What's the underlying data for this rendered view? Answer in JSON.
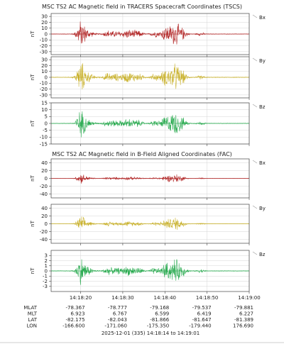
{
  "colors": {
    "bx": "#b02020",
    "by": "#c8b028",
    "bz": "#22a84a"
  },
  "chart_data": {
    "type": "line",
    "x_range": [
      "14:18:13",
      "14:19:00"
    ],
    "x_ticks": [
      "14:18:20",
      "14:18:30",
      "14:18:40",
      "14:18:50",
      "14:19:00"
    ],
    "footer": "2025-12-01 (335) 14:18:14 to 14:19:01",
    "ephemeris": {
      "rows": [
        {
          "label": "MLAT",
          "values": [
            "-78.367",
            "-78.777",
            "-79.168",
            "-79.537",
            "-79.881"
          ]
        },
        {
          "label": "MLT",
          "values": [
            "6.923",
            "6.767",
            "6.599",
            "6.419",
            "6.227"
          ]
        },
        {
          "label": "LAT",
          "values": [
            "-82.175",
            "-82.043",
            "-81.866",
            "-81.647",
            "-81.389"
          ]
        },
        {
          "label": "LON",
          "values": [
            "-166.600",
            "-171.060",
            "-175.350",
            "-179.440",
            "176.690"
          ]
        }
      ]
    },
    "groups": [
      {
        "title": "MSC TS2 AC Magnetic field in TRACERS Spacecraft Coordinates (TSCS)",
        "panels": [
          {
            "name": "Bx",
            "ylabel": "nT",
            "ylim": [
              -35,
              35
            ],
            "yticks": [
              "30",
              "20",
              "10",
              "0",
              "-10",
              "-20",
              "-30"
            ],
            "color_key": "bx",
            "amplitude": 14
          },
          {
            "name": "By",
            "ylabel": "nT",
            "ylim": [
              -35,
              35
            ],
            "yticks": [
              "30",
              "20",
              "10",
              "0",
              "-10",
              "-20",
              "-30"
            ],
            "color_key": "by",
            "amplitude": 16
          },
          {
            "name": "Bz",
            "ylabel": "nT",
            "ylim": [
              -15,
              15
            ],
            "yticks": [
              "15",
              "10",
              "5",
              "0",
              "-5",
              "-10",
              "-15"
            ],
            "color_key": "bz",
            "amplitude": 6
          }
        ]
      },
      {
        "title": "MSC TS2 AC Magnetic field in B-Field Aligned Coordinates (FAC)",
        "panels": [
          {
            "name": "Bx",
            "ylabel": "nT",
            "ylim": [
              -50,
              50
            ],
            "yticks": [
              "40",
              "20",
              "0",
              "-20",
              "-40"
            ],
            "color_key": "bx",
            "amplitude": 8
          },
          {
            "name": "By",
            "ylabel": "nT",
            "ylim": [
              -50,
              50
            ],
            "yticks": [
              "40",
              "20",
              "0",
              "-20",
              "-40"
            ],
            "color_key": "by",
            "amplitude": 12
          },
          {
            "name": "Bz",
            "ylabel": "nT",
            "ylim": [
              -4,
              4
            ],
            "yticks": [
              "3",
              "2",
              "1",
              "0",
              "-1",
              "-2",
              "-3"
            ],
            "color_key": "bz",
            "amplitude": 1.6
          }
        ]
      }
    ]
  }
}
